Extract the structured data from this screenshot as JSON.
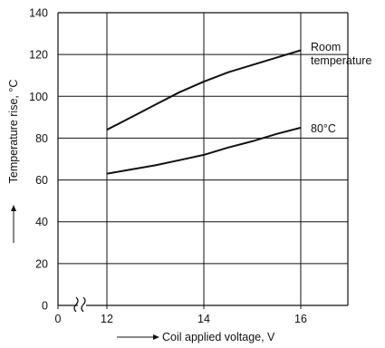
{
  "chart_data": {
    "type": "line",
    "xlabel": "Coil applied voltage, V",
    "ylabel": "Temperature rise, °C",
    "x_ticks": [
      {
        "value": 0,
        "label": "0"
      },
      {
        "value": 12,
        "label": "12"
      },
      {
        "value": 14,
        "label": "14"
      },
      {
        "value": 16,
        "label": "16"
      }
    ],
    "y_ticks": [
      0,
      20,
      40,
      60,
      80,
      100,
      120,
      140
    ],
    "xlim": [
      12,
      17
    ],
    "ylim": [
      0,
      140
    ],
    "x_axis_break": true,
    "grid": true,
    "legend": "none",
    "series": [
      {
        "name": "Room temperature",
        "label_lines": [
          "Room",
          "temperature"
        ],
        "x": [
          12,
          12.5,
          13,
          13.5,
          14,
          14.5,
          15,
          15.5,
          16
        ],
        "y": [
          84,
          90,
          96,
          102,
          107,
          111.5,
          115,
          118.5,
          122
        ]
      },
      {
        "name": "80°C",
        "label_lines": [
          "80°C"
        ],
        "x": [
          12,
          12.5,
          13,
          13.5,
          14,
          14.5,
          15,
          15.5,
          16
        ],
        "y": [
          63,
          65,
          67,
          69.5,
          72,
          75.5,
          78.5,
          82,
          85
        ]
      }
    ]
  }
}
